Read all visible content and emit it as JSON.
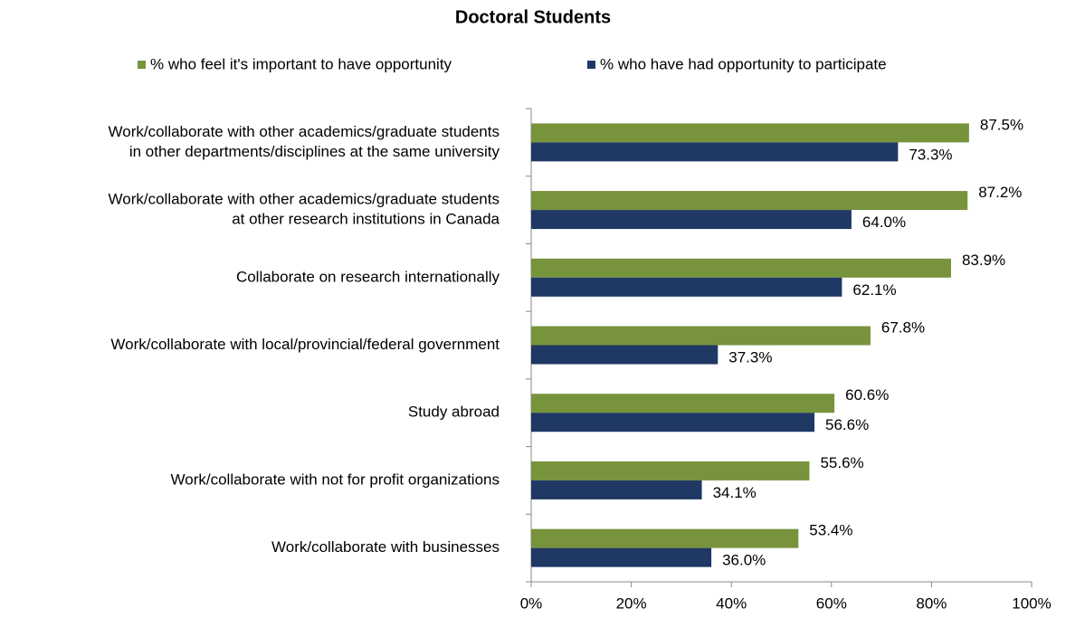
{
  "chart_data": {
    "type": "bar",
    "orientation": "horizontal",
    "title": "Doctoral Students",
    "categories": [
      [
        "Work/collaborate with other academics/graduate students",
        "in other departments/disciplines at the same university"
      ],
      [
        "Work/collaborate with other academics/graduate students",
        "at other research institutions in Canada"
      ],
      [
        "Collaborate on research internationally"
      ],
      [
        "Work/collaborate with local/provincial/federal government"
      ],
      [
        "Study abroad"
      ],
      [
        "Work/collaborate with not for profit organizations"
      ],
      [
        "Work/collaborate with businesses"
      ]
    ],
    "series": [
      {
        "name": "% who feel it's important to have opportunity",
        "color": "#77933c",
        "values": [
          87.5,
          87.2,
          83.9,
          67.8,
          60.6,
          55.6,
          53.4
        ],
        "value_labels": [
          "87.5%",
          "87.2%",
          "83.9%",
          "67.8%",
          "60.6%",
          "55.6%",
          "53.4%"
        ]
      },
      {
        "name": "% who have had opportunity to participate",
        "color": "#1f3864",
        "values": [
          73.3,
          64.0,
          62.1,
          37.3,
          56.6,
          34.1,
          36.0
        ],
        "value_labels": [
          "73.3%",
          "64.0%",
          "62.1%",
          "37.3%",
          "56.6%",
          "34.1%",
          "36.0%"
        ]
      }
    ],
    "xlim": [
      0,
      100
    ],
    "xticks": [
      {
        "value": 0,
        "label": "0%"
      },
      {
        "value": 20,
        "label": "20%"
      },
      {
        "value": 40,
        "label": "40%"
      },
      {
        "value": 60,
        "label": "60%"
      },
      {
        "value": 80,
        "label": "80%"
      },
      {
        "value": 100,
        "label": "100%"
      }
    ],
    "legend": "top"
  }
}
